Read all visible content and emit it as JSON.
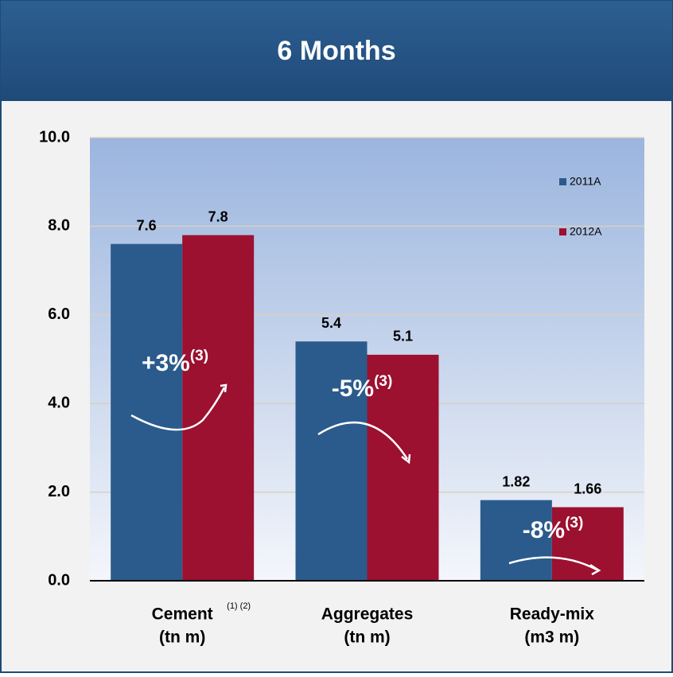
{
  "chart_data": {
    "type": "bar",
    "title": "6 Months",
    "categories": [
      "Cement",
      "Aggregates",
      "Ready-mix"
    ],
    "category_sublabels": [
      "(tn m)",
      "(tn m)",
      "(m3 m)"
    ],
    "category_footnote": "(1) (2)",
    "series": [
      {
        "name": "2011A",
        "color": "#2b5b8c",
        "values": [
          7.6,
          5.4,
          1.82
        ]
      },
      {
        "name": "2012A",
        "color": "#9c1030",
        "values": [
          7.8,
          5.1,
          1.66
        ]
      }
    ],
    "ylim": [
      0,
      10
    ],
    "yticks": [
      {
        "value": 0,
        "label": "0.0"
      },
      {
        "value": 2,
        "label": "2.0"
      },
      {
        "value": 4,
        "label": "4.0"
      },
      {
        "value": 6,
        "label": "6.0"
      },
      {
        "value": 8,
        "label": "8.0"
      },
      {
        "value": 10,
        "label": "10.0"
      }
    ],
    "grid": true,
    "legend": "top-right",
    "annotations": [
      {
        "text": "+3%",
        "sup": "(3)"
      },
      {
        "text": "-5%",
        "sup": "(3)"
      },
      {
        "text": "-8%",
        "sup": "(3)"
      }
    ]
  }
}
